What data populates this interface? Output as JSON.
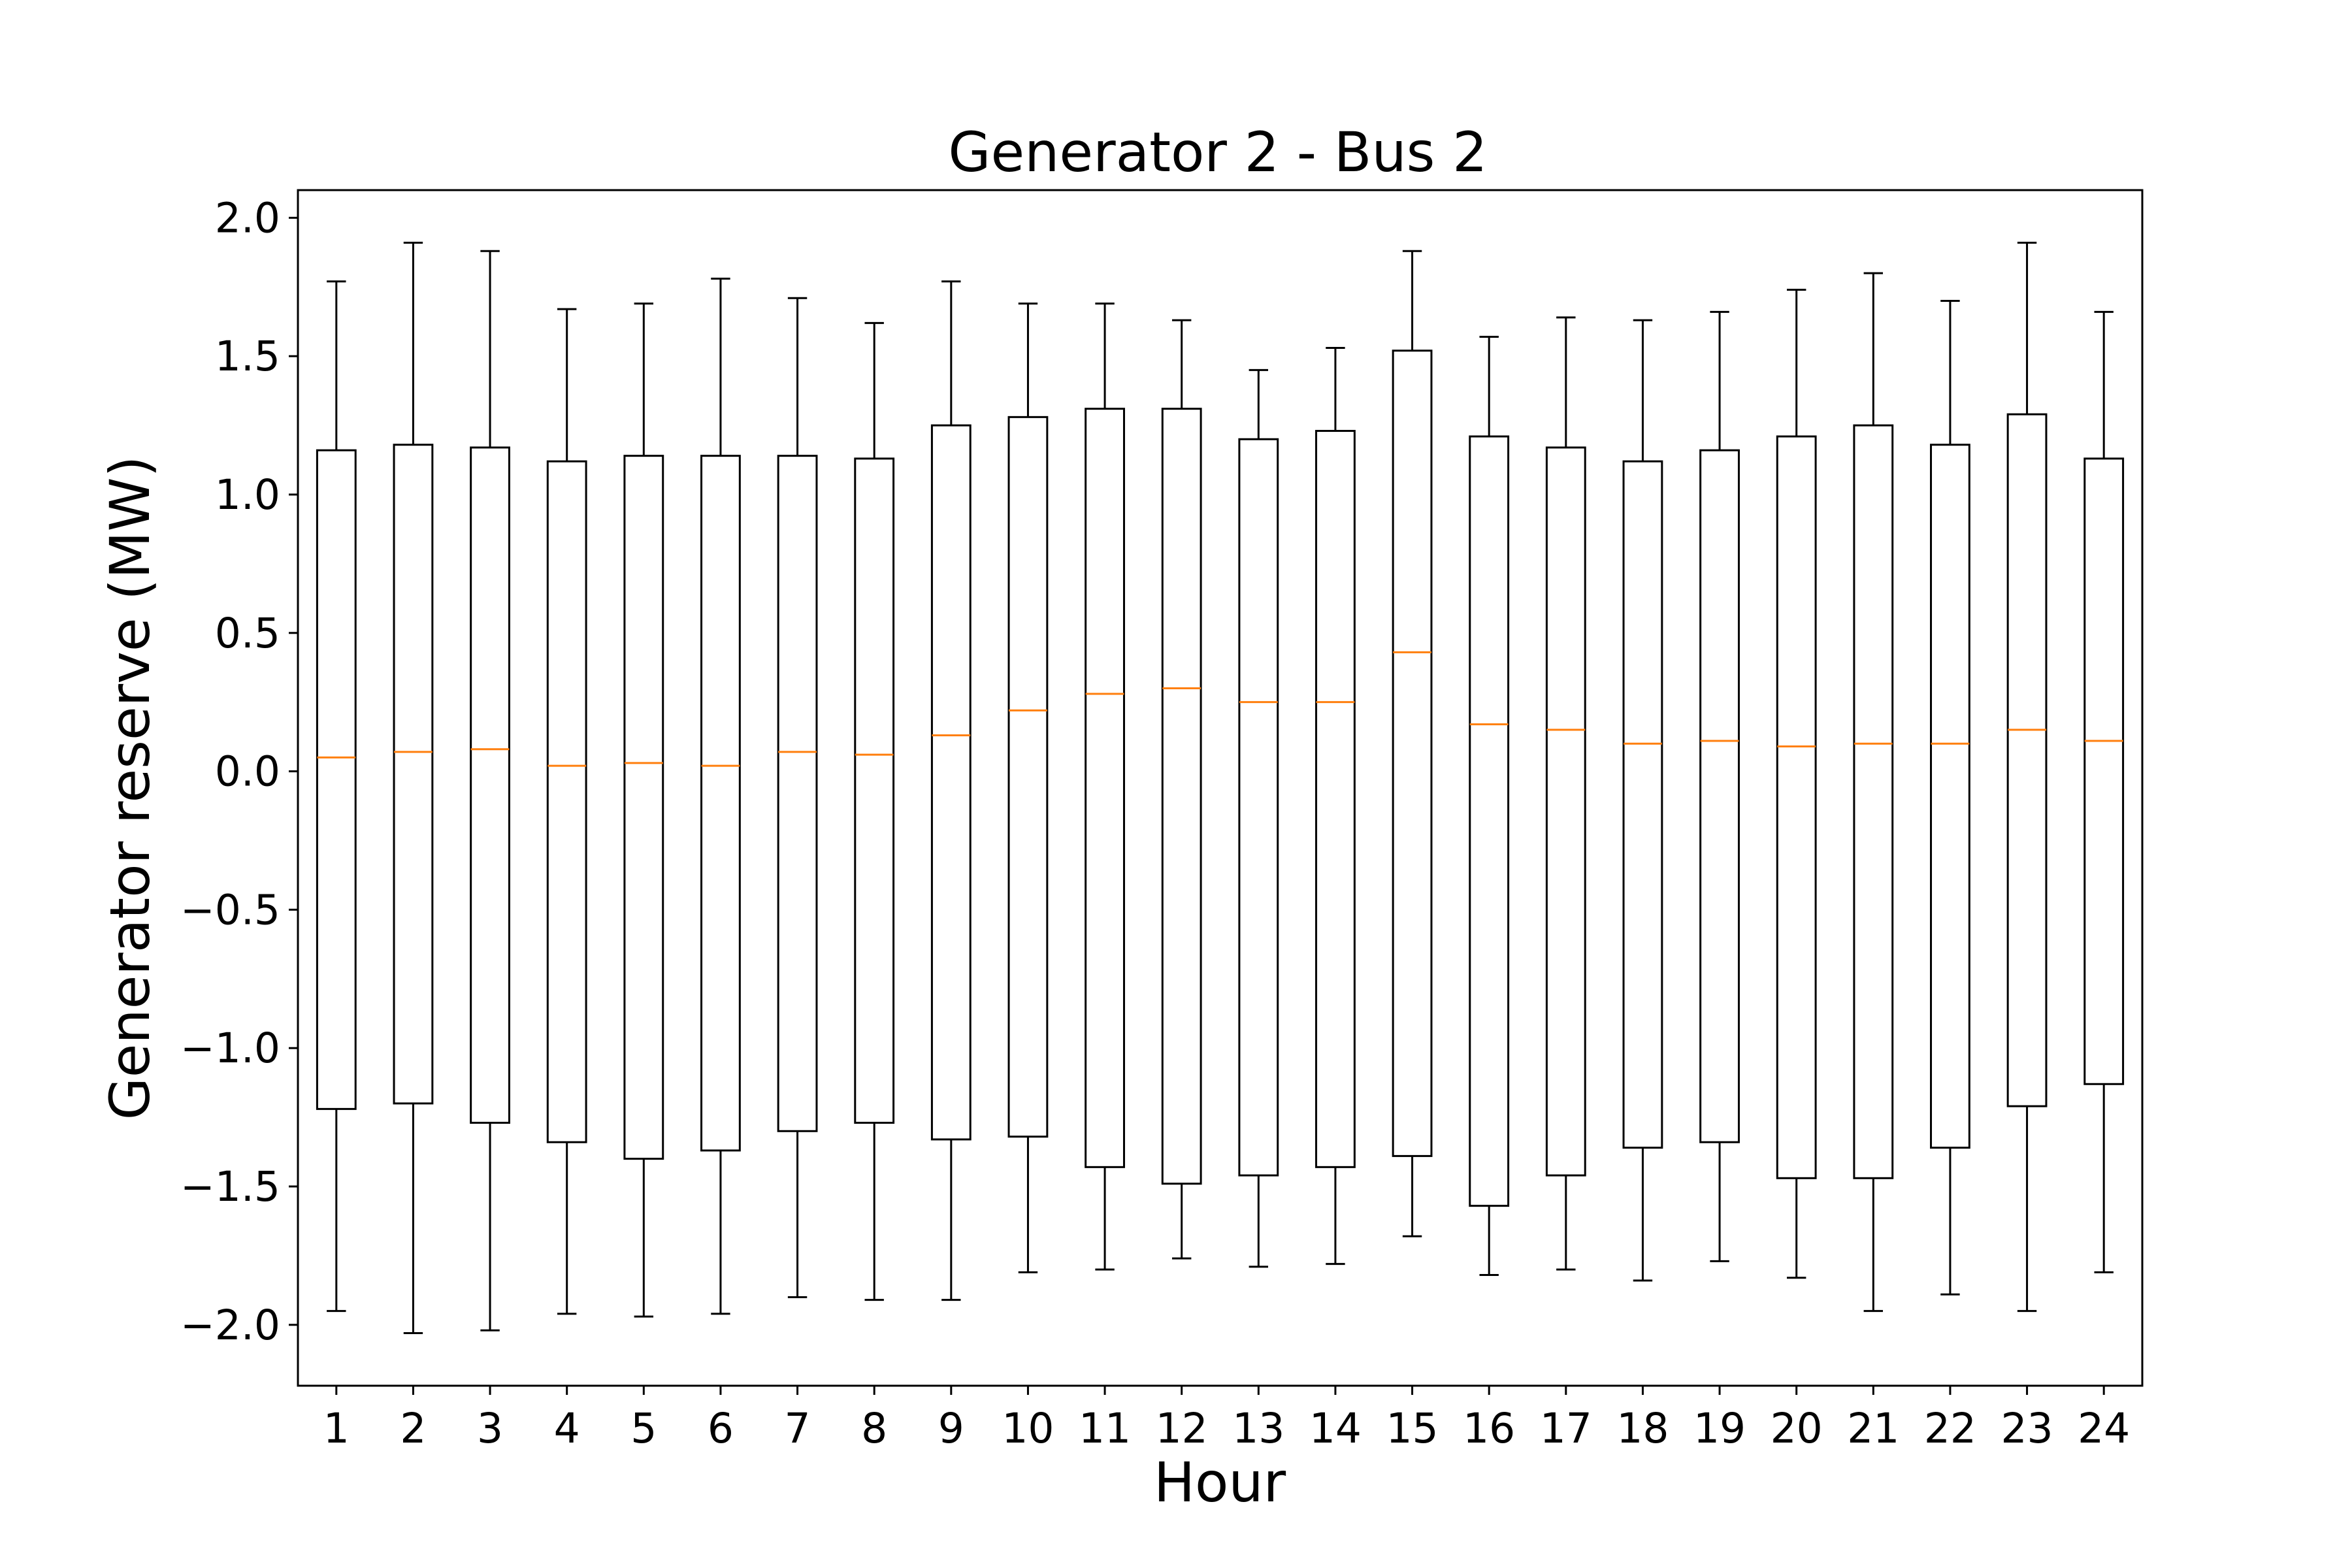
{
  "chart_data": {
    "type": "box",
    "title": "Generator 2 - Bus 2",
    "xlabel": "Hour",
    "ylabel": "Generator reserve (MW)",
    "ylim": [
      -2.22,
      2.1
    ],
    "xlim": [
      0.5,
      24.5
    ],
    "yticks": [
      2.0,
      1.5,
      1.0,
      0.5,
      0.0,
      -0.5,
      -1.0,
      -1.5,
      -2.0
    ],
    "ytick_labels": [
      "2.0",
      "1.5",
      "1.0",
      "0.5",
      "0.0",
      "−0.5",
      "−1.0",
      "−1.5",
      "−2.0"
    ],
    "grid": false,
    "legend": "none",
    "colors": {
      "box": "#000000",
      "whisker": "#000000",
      "median": "#ff7f0e"
    },
    "categories": [
      "1",
      "2",
      "3",
      "4",
      "5",
      "6",
      "7",
      "8",
      "9",
      "10",
      "11",
      "12",
      "13",
      "14",
      "15",
      "16",
      "17",
      "18",
      "19",
      "20",
      "21",
      "22",
      "23",
      "24"
    ],
    "series": [
      {
        "whislo": [
          -1.95,
          -2.03,
          -2.02,
          -1.96,
          -1.97,
          -1.96,
          -1.9,
          -1.91,
          -1.91,
          -1.81,
          -1.8,
          -1.76,
          -1.79,
          -1.78,
          -1.68,
          -1.82,
          -1.8,
          -1.84,
          -1.77,
          -1.83,
          -1.95,
          -1.89,
          -1.95,
          -1.81
        ],
        "q1": [
          -1.22,
          -1.2,
          -1.27,
          -1.34,
          -1.4,
          -1.37,
          -1.3,
          -1.27,
          -1.33,
          -1.32,
          -1.43,
          -1.49,
          -1.46,
          -1.43,
          -1.39,
          -1.57,
          -1.46,
          -1.36,
          -1.34,
          -1.47,
          -1.47,
          -1.36,
          -1.21,
          -1.13
        ],
        "med": [
          0.05,
          0.07,
          0.08,
          0.02,
          0.03,
          0.02,
          0.07,
          0.06,
          0.13,
          0.22,
          0.28,
          0.3,
          0.25,
          0.25,
          0.43,
          0.17,
          0.15,
          0.1,
          0.11,
          0.09,
          0.1,
          0.1,
          0.15,
          0.11
        ],
        "q3": [
          1.16,
          1.18,
          1.17,
          1.12,
          1.14,
          1.14,
          1.14,
          1.13,
          1.25,
          1.28,
          1.31,
          1.31,
          1.2,
          1.23,
          1.52,
          1.21,
          1.17,
          1.12,
          1.16,
          1.21,
          1.25,
          1.18,
          1.29,
          1.13
        ],
        "whishi": [
          1.77,
          1.91,
          1.88,
          1.67,
          1.69,
          1.78,
          1.71,
          1.62,
          1.77,
          1.69,
          1.69,
          1.63,
          1.45,
          1.53,
          1.88,
          1.57,
          1.64,
          1.63,
          1.66,
          1.74,
          1.8,
          1.7,
          1.91,
          1.66
        ]
      }
    ]
  }
}
